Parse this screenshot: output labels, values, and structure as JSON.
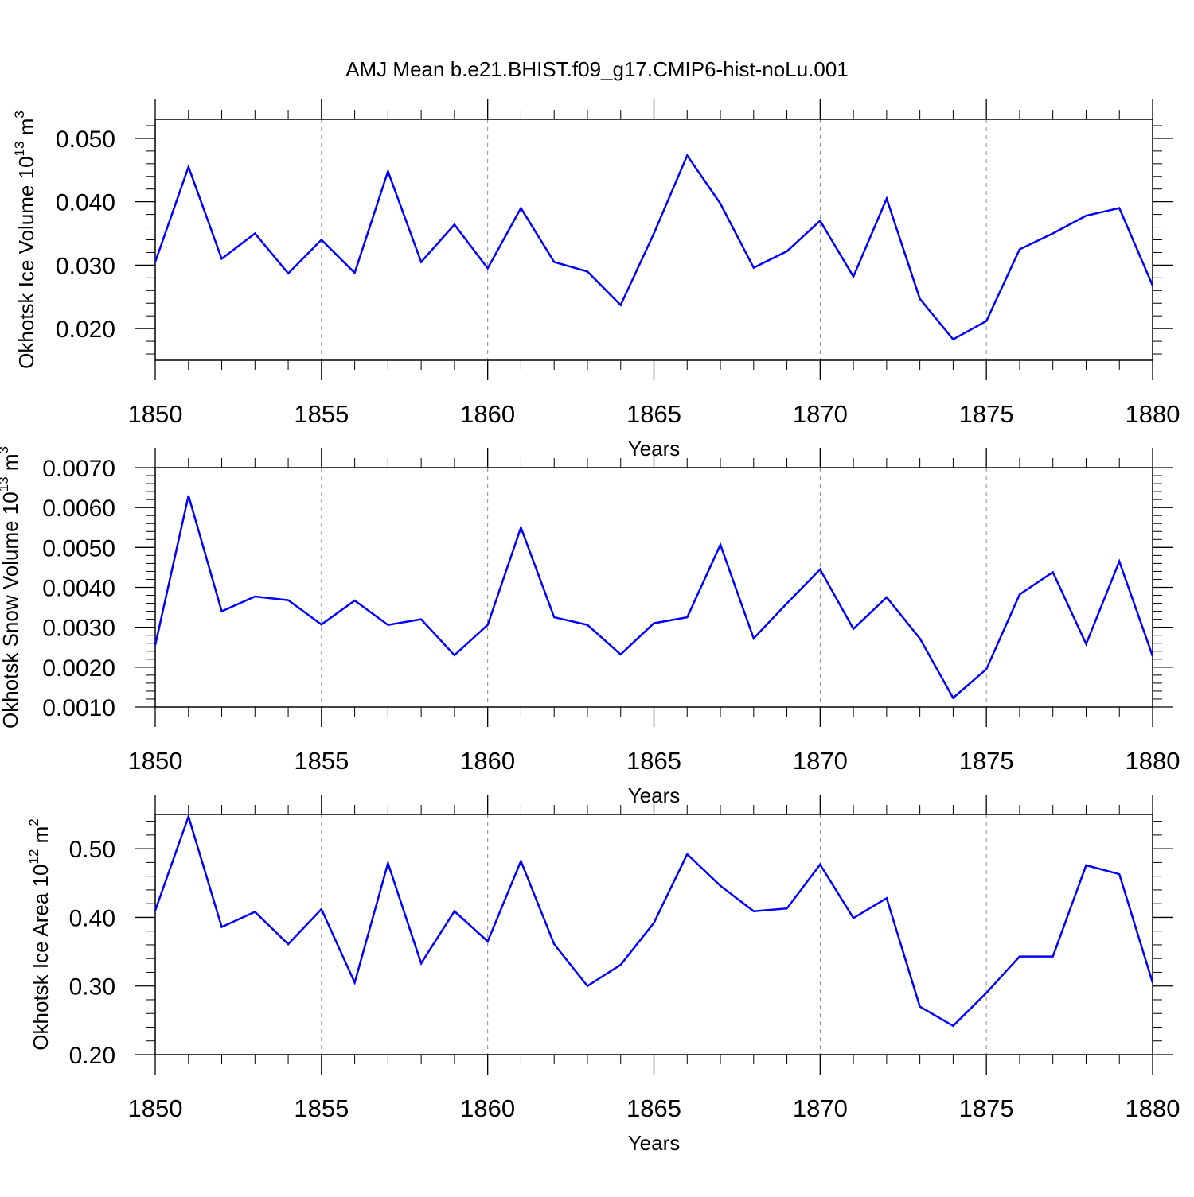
{
  "title": "AMJ Mean b.e21.BHIST.f09_g17.CMIP6-hist-noLu.001",
  "chart_data": [
    {
      "type": "line",
      "ylabel": "Okhotsk Ice Volume",
      "yunit_base": "10",
      "yunit_exp": "13",
      "yunit_sym": "m",
      "yunit_pow": "3",
      "xlabel": "Years",
      "xlim": [
        1850,
        1880
      ],
      "ylim": [
        0.015,
        0.053
      ],
      "yticks": [
        0.02,
        0.03,
        0.04,
        0.05
      ],
      "ytick_labels": [
        "0.020",
        "0.030",
        "0.040",
        "0.050"
      ],
      "yminor": 0.002,
      "xticks": [
        1850,
        1855,
        1860,
        1865,
        1870,
        1875,
        1880
      ],
      "xtick_labels": [
        "1850",
        "1855",
        "1860",
        "1865",
        "1870",
        "1875",
        "1880"
      ],
      "x": [
        1850,
        1851,
        1852,
        1853,
        1854,
        1855,
        1856,
        1857,
        1858,
        1859,
        1860,
        1861,
        1862,
        1863,
        1864,
        1865,
        1866,
        1867,
        1868,
        1869,
        1870,
        1871,
        1872,
        1873,
        1874,
        1875,
        1876,
        1877,
        1878,
        1879,
        1880
      ],
      "values": [
        0.0305,
        0.0455,
        0.031,
        0.035,
        0.0287,
        0.034,
        0.0288,
        0.0448,
        0.0305,
        0.0364,
        0.0295,
        0.039,
        0.0305,
        0.029,
        0.0237,
        0.035,
        0.0473,
        0.0397,
        0.0296,
        0.0322,
        0.037,
        0.0282,
        0.0405,
        0.0247,
        0.0183,
        0.0212,
        0.0325,
        0.035,
        0.0378,
        0.039,
        0.0268
      ],
      "line_color": "#0000ff",
      "grid": "vertical dashed"
    },
    {
      "type": "line",
      "ylabel": "Okhotsk Snow Volume",
      "yunit_base": "10",
      "yunit_exp": "13",
      "yunit_sym": "m",
      "yunit_pow": "3",
      "xlabel": "Years",
      "xlim": [
        1850,
        1880
      ],
      "ylim": [
        0.001,
        0.007
      ],
      "yticks": [
        0.001,
        0.002,
        0.003,
        0.004,
        0.005,
        0.006,
        0.007
      ],
      "ytick_labels": [
        "0.0010",
        "0.0020",
        "0.0030",
        "0.0040",
        "0.0050",
        "0.0060",
        "0.0070"
      ],
      "yminor": 0.0002,
      "xticks": [
        1850,
        1855,
        1860,
        1865,
        1870,
        1875,
        1880
      ],
      "xtick_labels": [
        "1850",
        "1855",
        "1860",
        "1865",
        "1870",
        "1875",
        "1880"
      ],
      "x": [
        1850,
        1851,
        1852,
        1853,
        1854,
        1855,
        1856,
        1857,
        1858,
        1859,
        1860,
        1861,
        1862,
        1863,
        1864,
        1865,
        1866,
        1867,
        1868,
        1869,
        1870,
        1871,
        1872,
        1873,
        1874,
        1875,
        1876,
        1877,
        1878,
        1879,
        1880
      ],
      "values": [
        0.00255,
        0.0063,
        0.0034,
        0.00377,
        0.00368,
        0.00307,
        0.00367,
        0.00306,
        0.0032,
        0.0023,
        0.00306,
        0.0055,
        0.00325,
        0.00306,
        0.00232,
        0.0031,
        0.00325,
        0.00507,
        0.00272,
        0.0036,
        0.00445,
        0.00296,
        0.00375,
        0.00272,
        0.00123,
        0.00195,
        0.00382,
        0.00438,
        0.00258,
        0.00465,
        0.00228
      ],
      "line_color": "#0000ff",
      "grid": "vertical dashed"
    },
    {
      "type": "line",
      "ylabel": "Okhotsk Ice Area",
      "yunit_base": "10",
      "yunit_exp": "12",
      "yunit_sym": "m",
      "yunit_pow": "2",
      "xlabel": "Years",
      "xlim": [
        1850,
        1880
      ],
      "ylim": [
        0.2,
        0.55
      ],
      "yticks": [
        0.2,
        0.3,
        0.4,
        0.5
      ],
      "ytick_labels": [
        "0.20",
        "0.30",
        "0.40",
        "0.50"
      ],
      "yminor": 0.02,
      "xticks": [
        1850,
        1855,
        1860,
        1865,
        1870,
        1875,
        1880
      ],
      "xtick_labels": [
        "1850",
        "1855",
        "1860",
        "1865",
        "1870",
        "1875",
        "1880"
      ],
      "x": [
        1850,
        1851,
        1852,
        1853,
        1854,
        1855,
        1856,
        1857,
        1858,
        1859,
        1860,
        1861,
        1862,
        1863,
        1864,
        1865,
        1866,
        1867,
        1868,
        1869,
        1870,
        1871,
        1872,
        1873,
        1874,
        1875,
        1876,
        1877,
        1878,
        1879,
        1880
      ],
      "values": [
        0.41,
        0.547,
        0.386,
        0.408,
        0.361,
        0.412,
        0.305,
        0.479,
        0.333,
        0.409,
        0.365,
        0.482,
        0.361,
        0.3,
        0.331,
        0.392,
        0.492,
        0.446,
        0.409,
        0.413,
        0.477,
        0.399,
        0.428,
        0.27,
        0.242,
        0.29,
        0.343,
        0.343,
        0.476,
        0.463,
        0.305
      ],
      "line_color": "#0000ff",
      "grid": "vertical dashed"
    }
  ]
}
